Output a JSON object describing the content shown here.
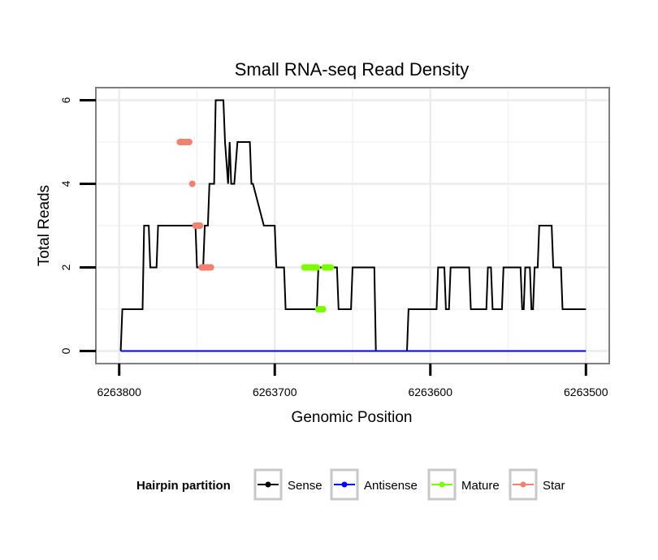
{
  "chart_data": {
    "type": "line",
    "title": "Small RNA-seq Read Density",
    "xlabel": "Genomic Position",
    "ylabel": "Total Reads",
    "x_reversed": true,
    "xlim": [
      6263815,
      6263485
    ],
    "ylim": [
      -0.3,
      6.3
    ],
    "xticks": [
      6263800,
      6263700,
      6263600,
      6263500
    ],
    "xtick_labels": [
      "6263800",
      "6263700",
      "6263600",
      "6263500"
    ],
    "yticks": [
      0,
      2,
      4,
      6
    ],
    "ytick_labels": [
      "0",
      "2",
      "4",
      "6"
    ],
    "grid": true,
    "legend": {
      "title": "Hairpin partition",
      "position": "bottom",
      "entries": [
        "Sense",
        "Antisense",
        "Mature",
        "Star"
      ]
    },
    "series": [
      {
        "name": "Sense",
        "color": "#000000",
        "style": "line",
        "x": [
          6263799,
          6263798,
          6263785,
          6263784,
          6263781,
          6263780,
          6263776,
          6263775,
          6263770,
          6263769,
          6263768,
          6263767,
          6263764,
          6263763,
          6263763,
          6263761,
          6263760,
          6263752,
          6263751,
          6263750,
          6263749,
          6263748,
          6263747,
          6263746,
          6263745,
          6263743,
          6263742,
          6263739,
          6263738,
          6263737,
          6263733,
          6263732,
          6263730,
          6263729,
          6263728,
          6263726,
          6263724,
          6263724,
          6263723,
          6263720,
          6263719,
          6263716,
          6263715,
          6263714,
          6263707,
          6263706,
          6263700,
          6263699,
          6263694,
          6263693,
          6263689,
          6263688,
          6263681,
          6263680,
          6263673,
          6263672,
          6263669,
          6263668,
          6263665,
          6263664,
          6263660,
          6263659,
          6263651,
          6263650,
          6263636,
          6263635,
          6263615,
          6263614,
          6263596,
          6263595,
          6263591,
          6263590,
          6263588,
          6263587,
          6263585,
          6263584,
          6263579,
          6263578,
          6263575,
          6263574,
          6263564,
          6263563,
          6263561,
          6263560,
          6263554,
          6263553,
          6263549,
          6263548,
          6263546,
          6263545,
          6263542,
          6263541,
          6263540,
          6263539,
          6263536,
          6263535,
          6263534,
          6263533,
          6263531,
          6263530,
          6263522,
          6263521,
          6263516,
          6263515,
          6263514,
          6263513,
          6263508,
          6263507,
          6263504,
          6263503,
          6263500
        ],
        "y": [
          0,
          1,
          1,
          3,
          3,
          2,
          2,
          3,
          3,
          3,
          3,
          3,
          3,
          3,
          3,
          3,
          3,
          3,
          3,
          2,
          2,
          2,
          2,
          2,
          3,
          3,
          4,
          4,
          6,
          6,
          6,
          5,
          4,
          5,
          4,
          4,
          5,
          5,
          5,
          5,
          5,
          5,
          4,
          4,
          3,
          3,
          3,
          2,
          2,
          1,
          1,
          1,
          1,
          1,
          1,
          2,
          2,
          2,
          2,
          2,
          2,
          1,
          1,
          2,
          2,
          0,
          0,
          1,
          1,
          2,
          2,
          1,
          1,
          2,
          2,
          2,
          2,
          2,
          2,
          1,
          1,
          2,
          2,
          1,
          1,
          2,
          2,
          2,
          2,
          2,
          2,
          1,
          1,
          2,
          2,
          1,
          1,
          2,
          2,
          3,
          3,
          2,
          2,
          1,
          1,
          1,
          1,
          1,
          1,
          1,
          1
        ]
      },
      {
        "name": "Antisense",
        "color": "#0000ff",
        "style": "line",
        "x": [
          6263799,
          6263500
        ],
        "y": [
          0,
          0
        ]
      },
      {
        "name": "Mature",
        "color": "#7cfc00",
        "style": "points",
        "x": [
          6263681,
          6263680,
          6263679,
          6263678,
          6263677,
          6263676,
          6263675,
          6263674,
          6263673,
          6263672,
          6263671,
          6263670,
          6263669,
          6263668,
          6263667,
          6263666,
          6263665,
          6263664
        ],
        "y": [
          2,
          2,
          2,
          2,
          2,
          2,
          2,
          2,
          2,
          1,
          1,
          1,
          1,
          2,
          2,
          2,
          2,
          2
        ]
      },
      {
        "name": "Star",
        "color": "#f08070",
        "style": "points",
        "x": [
          6263761,
          6263760,
          6263759,
          6263758,
          6263757,
          6263756,
          6263755,
          6263753,
          6263751,
          6263750,
          6263749,
          6263748,
          6263747,
          6263746,
          6263745,
          6263744,
          6263743,
          6263742,
          6263741
        ],
        "y": [
          5,
          5,
          5,
          5,
          5,
          5,
          5,
          4,
          3,
          3,
          3,
          3,
          2,
          2,
          2,
          2,
          2,
          2,
          2
        ]
      }
    ]
  }
}
